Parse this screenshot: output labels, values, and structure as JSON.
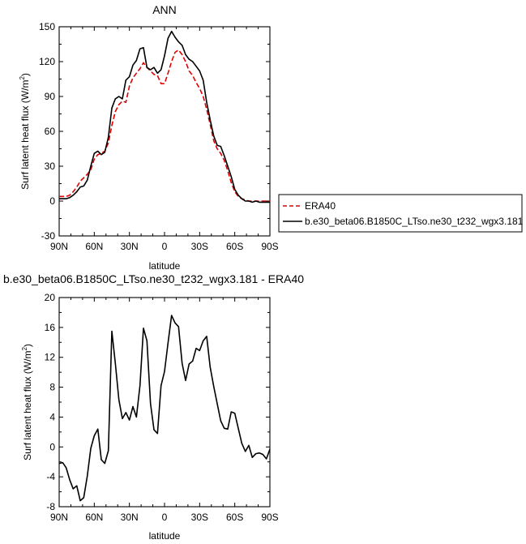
{
  "chart_data": [
    {
      "type": "line",
      "title": "ANN",
      "xlabel": "latitude",
      "ylabel": "Surf latent heat flux (W/m",
      "ylabel_sup": "2",
      "ylabel_close": ")",
      "xlim": [
        90,
        -90
      ],
      "ylim": [
        -30,
        150
      ],
      "x_ticks": [
        {
          "value": 90,
          "label": "90N"
        },
        {
          "value": 60,
          "label": "60N"
        },
        {
          "value": 30,
          "label": "30N"
        },
        {
          "value": 0,
          "label": "0"
        },
        {
          "value": -30,
          "label": "30S"
        },
        {
          "value": -60,
          "label": "60S"
        },
        {
          "value": -90,
          "label": "90S"
        }
      ],
      "y_ticks": [
        {
          "value": 150,
          "label": "150"
        },
        {
          "value": 120,
          "label": "120"
        },
        {
          "value": 90,
          "label": "90"
        },
        {
          "value": 60,
          "label": "60"
        },
        {
          "value": 30,
          "label": "30"
        },
        {
          "value": 0,
          "label": "0"
        },
        {
          "value": -30,
          "label": "-30"
        }
      ],
      "legend": "outside-right",
      "series": [
        {
          "name": "ERA40",
          "color": "#e00000",
          "dash": "dashed",
          "x": [
            90,
            87,
            84,
            81,
            78,
            75,
            72,
            69,
            66,
            63,
            60,
            57,
            54,
            51,
            48,
            45,
            42,
            39,
            36,
            33,
            30,
            27,
            24,
            21,
            18,
            15,
            12,
            9,
            6,
            3,
            0,
            -3,
            -6,
            -9,
            -12,
            -15,
            -18,
            -21,
            -24,
            -27,
            -30,
            -33,
            -36,
            -39,
            -42,
            -45,
            -48,
            -51,
            -54,
            -57,
            -60,
            -63,
            -66,
            -69,
            -72,
            -75,
            -78,
            -81,
            -84,
            -87,
            -90
          ],
          "y": [
            4,
            4,
            4,
            5,
            8,
            12,
            17,
            20,
            23,
            27,
            36,
            40,
            41,
            43,
            50,
            65,
            77,
            83,
            86,
            85,
            99,
            106,
            110,
            114,
            119,
            115,
            112,
            109,
            108,
            101,
            101,
            110,
            120,
            128,
            130,
            126,
            120,
            112,
            108,
            102,
            97,
            90,
            79,
            66,
            52,
            45,
            41,
            35,
            26,
            16,
            8,
            4,
            2,
            1,
            0,
            0,
            0,
            0,
            0,
            0,
            0
          ]
        },
        {
          "name": "b.e30_beta06.B1850C_LTso.ne30_t232_wgx3.181",
          "color": "#000000",
          "dash": "solid",
          "x": [
            90,
            87,
            84,
            81,
            78,
            75,
            72,
            69,
            66,
            63,
            60,
            57,
            54,
            51,
            48,
            45,
            42,
            39,
            36,
            33,
            30,
            27,
            24,
            21,
            18,
            15,
            12,
            9,
            6,
            3,
            0,
            -3,
            -6,
            -9,
            -12,
            -15,
            -18,
            -21,
            -24,
            -27,
            -30,
            -33,
            -36,
            -39,
            -42,
            -45,
            -48,
            -51,
            -54,
            -57,
            -60,
            -63,
            -66,
            -69,
            -72,
            -75,
            -78,
            -81,
            -84,
            -87,
            -90
          ],
          "y": [
            2,
            2,
            2,
            3,
            5,
            8,
            12,
            13,
            18,
            30,
            41,
            43,
            40,
            42,
            55,
            80,
            88,
            90,
            88,
            104,
            107,
            117,
            121,
            131,
            132,
            115,
            113,
            115,
            110,
            113,
            125,
            140,
            146,
            141,
            137,
            134,
            126,
            122,
            120,
            116,
            112,
            104,
            85,
            70,
            56,
            48,
            47,
            39,
            30,
            21,
            10,
            5,
            2,
            0,
            0,
            -1,
            0,
            -1,
            -1,
            -1,
            -1
          ]
        }
      ]
    },
    {
      "type": "line",
      "title": "b.e30_beta06.B1850C_LTso.ne30_t232_wgx3.181 - ERA40",
      "xlabel": "latitude",
      "ylabel": "Surf latent heat flux (W/m",
      "ylabel_sup": "2",
      "ylabel_close": ")",
      "xlim": [
        90,
        -90
      ],
      "ylim": [
        -8,
        20
      ],
      "x_ticks": [
        {
          "value": 90,
          "label": "90N"
        },
        {
          "value": 60,
          "label": "60N"
        },
        {
          "value": 30,
          "label": "30N"
        },
        {
          "value": 0,
          "label": "0"
        },
        {
          "value": -30,
          "label": "30S"
        },
        {
          "value": -60,
          "label": "60S"
        },
        {
          "value": -90,
          "label": "90S"
        }
      ],
      "y_ticks": [
        {
          "value": 20,
          "label": "20"
        },
        {
          "value": 16,
          "label": "16"
        },
        {
          "value": 12,
          "label": "12"
        },
        {
          "value": 8,
          "label": "8"
        },
        {
          "value": 4,
          "label": "4"
        },
        {
          "value": 0,
          "label": "0"
        },
        {
          "value": -4,
          "label": "-4"
        },
        {
          "value": -8,
          "label": "-8"
        }
      ],
      "series": [
        {
          "color": "#000000",
          "dash": "solid",
          "x": [
            90,
            87,
            84,
            81,
            78,
            75,
            72,
            69,
            66,
            63,
            60,
            57,
            54,
            51,
            48,
            45,
            42,
            39,
            36,
            33,
            30,
            27,
            24,
            21,
            18,
            15,
            12,
            9,
            6,
            3,
            0,
            -3,
            -6,
            -9,
            -12,
            -15,
            -18,
            -21,
            -24,
            -27,
            -30,
            -33,
            -36,
            -39,
            -42,
            -45,
            -48,
            -51,
            -54,
            -57,
            -60,
            -63,
            -66,
            -69,
            -72,
            -75,
            -78,
            -81,
            -84,
            -87,
            -90
          ],
          "y": [
            -2.2,
            -2.1,
            -2.8,
            -4.4,
            -5.6,
            -5.2,
            -7.2,
            -6.8,
            -3.9,
            -0.2,
            1.5,
            2.4,
            -1.7,
            -2.2,
            -0.5,
            15.5,
            11.2,
            6.3,
            3.8,
            4.6,
            3.6,
            5.4,
            4.0,
            8.2,
            15.9,
            14.2,
            5.8,
            2.3,
            1.8,
            8.2,
            10.1,
            13.9,
            17.6,
            16.6,
            16.1,
            11.2,
            8.9,
            11.1,
            11.5,
            13.2,
            12.9,
            14.2,
            14.8,
            10.7,
            8.1,
            5.8,
            3.5,
            2.5,
            2.4,
            4.7,
            4.5,
            2.5,
            0.5,
            -0.6,
            0.2,
            -1.4,
            -0.9,
            -0.8,
            -1.0,
            -1.6,
            -0.3
          ]
        }
      ]
    }
  ]
}
